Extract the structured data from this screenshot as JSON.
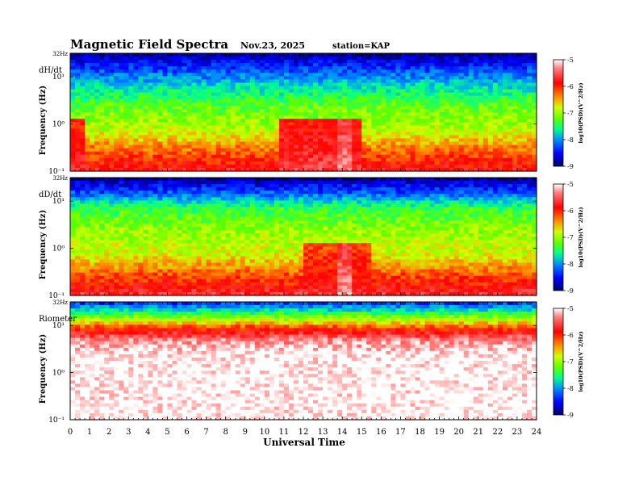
{
  "header": {
    "title": "Magnetic  Field  Spectra",
    "date": "Nov.23, 2025",
    "station": "station=KAP"
  },
  "chart_data": {
    "type": "heatmap",
    "xlabel": "Universal Time",
    "x_ticks": [
      "0",
      "1",
      "2",
      "3",
      "4",
      "5",
      "6",
      "7",
      "8",
      "9",
      "10",
      "11",
      "12",
      "13",
      "14",
      "15",
      "16",
      "17",
      "18",
      "19",
      "20",
      "21",
      "22",
      "23",
      "24"
    ],
    "xlim": [
      0,
      24
    ],
    "colorbar": {
      "label": "log10(PSD)(V^2/Hz)",
      "ticks": [
        "-5",
        "-6",
        "-7",
        "-8",
        "-9"
      ],
      "range": [
        -9,
        -5
      ],
      "colors": [
        "#000060",
        "#0000ff",
        "#0090ff",
        "#00ff90",
        "#60ff00",
        "#d0ff00",
        "#ff9000",
        "#ff0000",
        "#ff8080",
        "#ffffff"
      ]
    },
    "panels": [
      {
        "name": "dH/dt",
        "ylabel": "Frequency  (Hz)",
        "y_ticks": [
          "32Hz",
          "10¹",
          "10⁰",
          "10⁻¹"
        ],
        "bands": [
          {
            "freq_frac": 0.0,
            "level": -8.8
          },
          {
            "freq_frac": 0.12,
            "level": -8.3
          },
          {
            "freq_frac": 0.25,
            "level": -7.8
          },
          {
            "freq_frac": 0.45,
            "level": -7.2
          },
          {
            "freq_frac": 0.65,
            "level": -6.9
          },
          {
            "freq_frac": 0.82,
            "level": -6.3
          },
          {
            "freq_frac": 1.0,
            "level": -5.8
          }
        ],
        "events": [
          {
            "t": 10.8,
            "t2": 15.0,
            "level": -5.6
          },
          {
            "t": 13.8,
            "t2": 14.4,
            "level": -5.3
          },
          {
            "t": 0.0,
            "t2": 0.8,
            "level": -5.7
          }
        ]
      },
      {
        "name": "dD/dt",
        "ylabel": "Frequency  (Hz)",
        "y_ticks": [
          "32Hz",
          "10¹",
          "10⁰",
          "10⁻¹"
        ],
        "bands": [
          {
            "freq_frac": 0.0,
            "level": -8.8
          },
          {
            "freq_frac": 0.12,
            "level": -8.2
          },
          {
            "freq_frac": 0.25,
            "level": -7.4
          },
          {
            "freq_frac": 0.45,
            "level": -7.0
          },
          {
            "freq_frac": 0.65,
            "level": -6.8
          },
          {
            "freq_frac": 0.82,
            "level": -6.2
          },
          {
            "freq_frac": 1.0,
            "level": -5.7
          }
        ],
        "events": [
          {
            "t": 13.8,
            "t2": 14.6,
            "level": -5.3
          },
          {
            "t": 12.0,
            "t2": 15.5,
            "level": -5.8
          }
        ]
      },
      {
        "name": "Riometer",
        "ylabel": "Frequency  (Hz)",
        "y_ticks": [
          "32Hz",
          "10¹",
          "10⁰",
          "10⁻¹"
        ],
        "bands": [
          {
            "freq_frac": 0.0,
            "level": -8.3
          },
          {
            "freq_frac": 0.08,
            "level": -7.5
          },
          {
            "freq_frac": 0.15,
            "level": -6.8
          },
          {
            "freq_frac": 0.22,
            "level": -6.0
          },
          {
            "freq_frac": 0.32,
            "level": -5.3
          },
          {
            "freq_frac": 0.45,
            "level": -5.0
          },
          {
            "freq_frac": 1.0,
            "level": -5.0
          }
        ],
        "events": [
          {
            "t": 18.5,
            "t2": 20.2,
            "level": -5.0
          }
        ]
      }
    ]
  }
}
